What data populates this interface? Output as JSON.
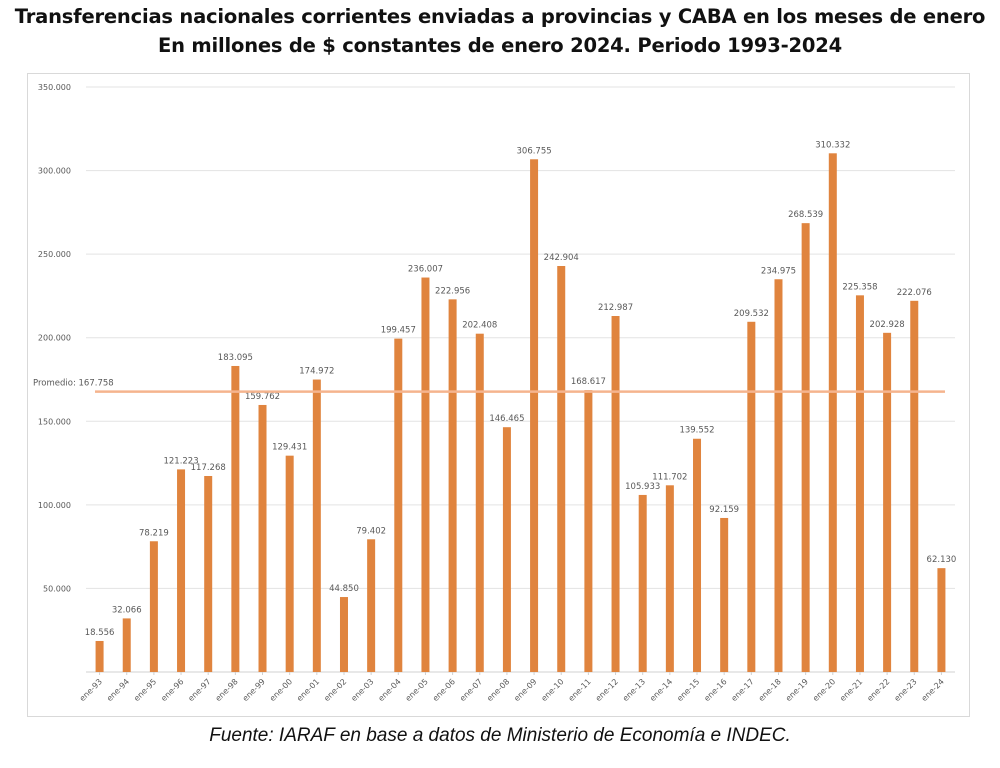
{
  "header": {
    "title_line1": "Transferencias nacionales corrientes enviadas a provincias y CABA en los meses de enero",
    "title_line2": "En millones de $ constantes de enero 2024. Periodo 1993-2024"
  },
  "footer": {
    "source": "Fuente: IARAF en base a datos de Ministerio de Economía e INDEC."
  },
  "colors": {
    "bar": "#E0843E",
    "average_line": "#F5B48E",
    "grid": "#E3E3E3",
    "text": "#595959"
  },
  "chart_data": {
    "type": "bar",
    "title": "Transferencias nacionales corrientes enviadas a provincias y CABA en los meses de enero",
    "subtitle": "En millones de $ constantes de enero 2024. Periodo 1993-2024",
    "xlabel": "",
    "ylabel": "",
    "ylim": [
      0,
      350
    ],
    "y_ticks": [
      50,
      100,
      150,
      200,
      250,
      300,
      350
    ],
    "y_tick_labels": [
      "50.000",
      "100.000",
      "150.000",
      "200.000",
      "250.000",
      "300.000",
      "350.000"
    ],
    "grid": true,
    "categories": [
      "ene-93",
      "ene-94",
      "ene-95",
      "ene-96",
      "ene-97",
      "ene-98",
      "ene-99",
      "ene-00",
      "ene-01",
      "ene-02",
      "ene-03",
      "ene-04",
      "ene-05",
      "ene-06",
      "ene-07",
      "ene-08",
      "ene-09",
      "ene-10",
      "ene-11",
      "ene-12",
      "ene-13",
      "ene-14",
      "ene-15",
      "ene-16",
      "ene-17",
      "ene-18",
      "ene-19",
      "ene-20",
      "ene-21",
      "ene-22",
      "ene-23",
      "ene-24"
    ],
    "values": [
      18.556,
      32.066,
      78.219,
      121.223,
      117.268,
      183.095,
      159.762,
      129.431,
      174.972,
      44.85,
      79.402,
      199.457,
      236.007,
      222.956,
      202.408,
      146.465,
      306.755,
      242.904,
      168.617,
      212.987,
      105.933,
      111.702,
      139.552,
      92.159,
      209.532,
      234.975,
      268.539,
      310.332,
      225.358,
      202.928,
      222.076,
      62.13
    ],
    "value_labels": [
      "18.556",
      "32.066",
      "78.219",
      "121.223",
      "117.268",
      "183.095",
      "159.762",
      "129.431",
      "174.972",
      "44.850",
      "79.402",
      "199.457",
      "236.007",
      "222.956",
      "202.408",
      "146.465",
      "306.755",
      "242.904",
      "168.617",
      "212.987",
      "105.933",
      "111.702",
      "139.552",
      "92.159",
      "209.532",
      "234.975",
      "268.539",
      "310.332",
      "225.358",
      "202.928",
      "222.076",
      "62.130"
    ],
    "average": {
      "value": 167.758,
      "label": "Promedio: 167.758"
    }
  }
}
